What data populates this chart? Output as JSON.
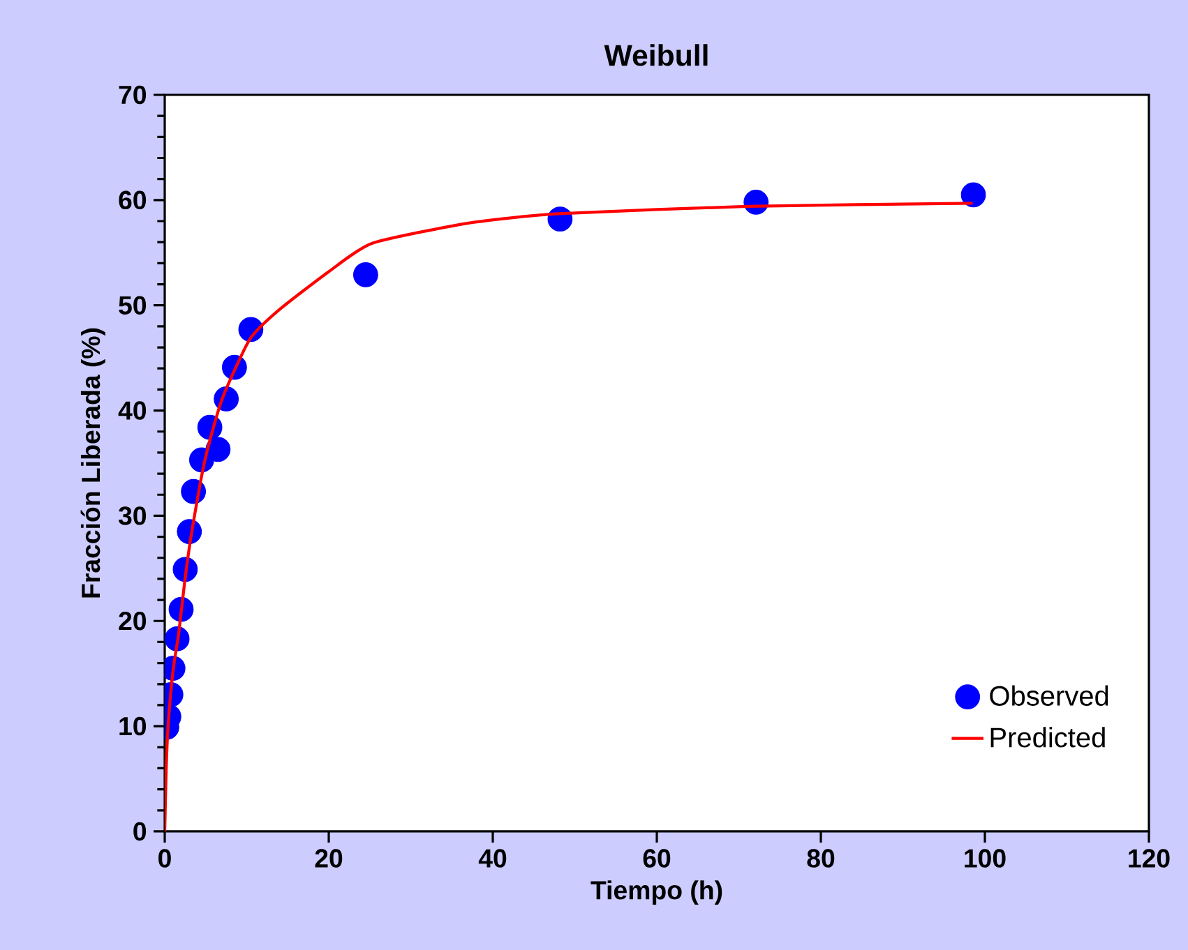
{
  "chart_data": {
    "type": "scatter",
    "title": "Weibull",
    "xlabel": "Tiempo (h)",
    "ylabel": "Fracción Liberada (%)",
    "xlim": [
      0,
      120
    ],
    "ylim": [
      0,
      70
    ],
    "xticks": [
      0,
      20,
      40,
      60,
      80,
      100,
      120
    ],
    "yticks": [
      0,
      10,
      20,
      30,
      40,
      50,
      60,
      70
    ],
    "grid": false,
    "legend": "bottom right",
    "series": [
      {
        "name": "Observed",
        "type": "scatter",
        "marker": "circle",
        "color": "#0000ff",
        "x": [
          0.25,
          0.5,
          0.75,
          1,
          1.5,
          2,
          2.5,
          3,
          3.5,
          4.5,
          5.5,
          6.5,
          7.5,
          8.5,
          10.5,
          24.5,
          48.2,
          72.1,
          98.6
        ],
        "values": [
          9.9,
          10.9,
          13.0,
          15.5,
          18.3,
          21.1,
          24.9,
          28.5,
          32.3,
          35.3,
          38.4,
          36.3,
          41.1,
          44.1,
          47.7,
          52.9,
          58.2,
          59.8,
          60.5
        ]
      },
      {
        "name": "Predicted",
        "type": "line",
        "marker": "none",
        "line_style": "solid",
        "color": "#ff0000",
        "x": [
          0,
          0.17,
          0.4,
          1.0,
          1.7,
          2.4,
          3.2,
          4.9,
          7.0,
          10.4,
          14,
          20,
          25.3,
          36.9,
          48,
          71,
          98.5
        ],
        "values": [
          0,
          5.7,
          9.9,
          15.2,
          18.8,
          23.5,
          28.0,
          35.3,
          41.1,
          46.8,
          49.6,
          53.2,
          55.9,
          57.8,
          58.7,
          59.4,
          59.7
        ]
      }
    ]
  }
}
